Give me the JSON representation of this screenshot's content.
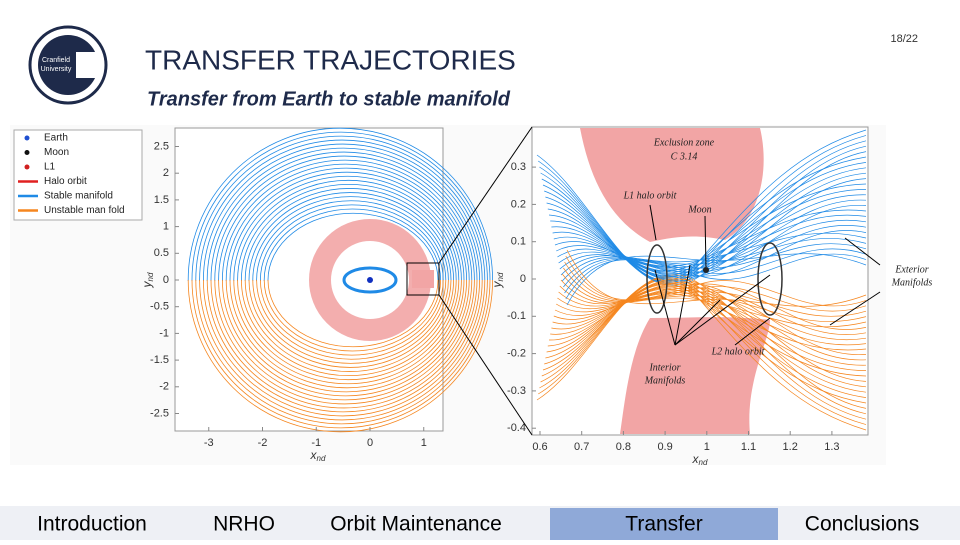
{
  "header": {
    "logo": [
      "Cranfield",
      "University"
    ],
    "title": "TRANSFER TRAJECTORIES",
    "subtitle": "Transfer from Earth to stable manifold",
    "page": "18/22"
  },
  "figure": {
    "left": {
      "legend": [
        "Earth",
        "Moon",
        "L1",
        "Halo orbit",
        "Stable manifold",
        "Unstable man fold"
      ],
      "x_label": [
        "x",
        "nd"
      ],
      "y_label": [
        "y",
        "nd"
      ],
      "xticks": [
        -3,
        -2,
        -1,
        0,
        1
      ],
      "yticks": [
        2.5,
        2,
        1.5,
        1,
        0.5,
        0,
        -0.5,
        -1,
        -1.5,
        -2,
        -2.5
      ]
    },
    "right": {
      "x_label": [
        "x",
        "nd"
      ],
      "y_label": [
        "y",
        "nd"
      ],
      "xticks": [
        0.6,
        0.7,
        0.8,
        0.9,
        1,
        1.1,
        1.2,
        1.3
      ],
      "yticks": [
        0.3,
        0.2,
        0.1,
        0,
        -0.1,
        -0.2,
        -0.3,
        -0.4
      ],
      "annotations": [
        "Exclusion zone",
        "C   3.14",
        "L1 halo orbit",
        "Moon",
        "Exterior",
        "Manifolds",
        "L2 halo orbit",
        "Interior",
        "Manifolds"
      ]
    }
  },
  "nav": [
    "Introduction",
    "NRHO",
    "Orbit Maintenance",
    "Transfer",
    "Conclusions"
  ]
}
